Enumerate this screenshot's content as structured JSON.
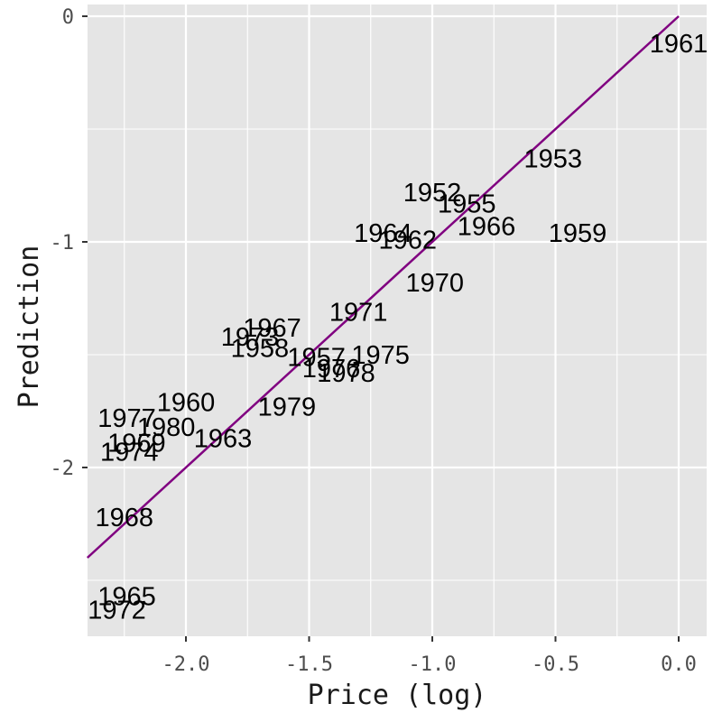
{
  "chart_data": {
    "type": "scatter",
    "xlabel": "Price (log)",
    "ylabel": "Prediction",
    "xlim": [
      -2.4,
      0.11
    ],
    "ylim": [
      -2.75,
      0.0
    ],
    "x_ticks": [
      -2.0,
      -1.5,
      -1.0,
      -0.5,
      0.0
    ],
    "x_tick_labels": [
      "-2.0",
      "-1.5",
      "-1.0",
      "-0.5",
      "0.0"
    ],
    "y_ticks": [
      -2,
      -1,
      0
    ],
    "y_tick_labels": [
      "-2",
      "-1",
      "0"
    ],
    "grid": true,
    "background": "#e5e5e5",
    "grid_color": "#ffffff",
    "reference_line": {
      "slope": 1,
      "intercept": 0,
      "color": "#800080"
    },
    "points": [
      {
        "label": "1961",
        "x": 0.0,
        "y": -0.12
      },
      {
        "label": "1953",
        "x": -0.51,
        "y": -0.63
      },
      {
        "label": "1952",
        "x": -1.0,
        "y": -0.78
      },
      {
        "label": "1955",
        "x": -0.86,
        "y": -0.83
      },
      {
        "label": "1966",
        "x": -0.78,
        "y": -0.93
      },
      {
        "label": "1959",
        "x": -0.41,
        "y": -0.96
      },
      {
        "label": "1964",
        "x": -1.2,
        "y": -0.96
      },
      {
        "label": "1962",
        "x": -1.1,
        "y": -0.99
      },
      {
        "label": "1970",
        "x": -0.99,
        "y": -1.18
      },
      {
        "label": "1971",
        "x": -1.3,
        "y": -1.31
      },
      {
        "label": "1967",
        "x": -1.65,
        "y": -1.38
      },
      {
        "label": "1973",
        "x": -1.74,
        "y": -1.42
      },
      {
        "label": "1958",
        "x": -1.7,
        "y": -1.47
      },
      {
        "label": "1957",
        "x": -1.47,
        "y": -1.51
      },
      {
        "label": "1975",
        "x": -1.21,
        "y": -1.5
      },
      {
        "label": "1976",
        "x": -1.41,
        "y": -1.56
      },
      {
        "label": "1978",
        "x": -1.35,
        "y": -1.58
      },
      {
        "label": "1960",
        "x": -2.0,
        "y": -1.71
      },
      {
        "label": "1979",
        "x": -1.59,
        "y": -1.73
      },
      {
        "label": "1977",
        "x": -2.24,
        "y": -1.78
      },
      {
        "label": "1980",
        "x": -2.08,
        "y": -1.82
      },
      {
        "label": "1963",
        "x": -1.85,
        "y": -1.87
      },
      {
        "label": "1969",
        "x": -2.2,
        "y": -1.89
      },
      {
        "label": "1974",
        "x": -2.23,
        "y": -1.93
      },
      {
        "label": "1968",
        "x": -2.25,
        "y": -2.22
      },
      {
        "label": "1965",
        "x": -2.24,
        "y": -2.57
      },
      {
        "label": "1972",
        "x": -2.28,
        "y": -2.63
      }
    ]
  }
}
